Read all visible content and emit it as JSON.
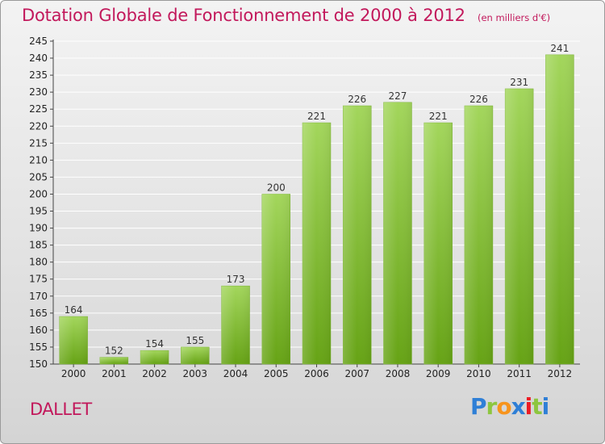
{
  "title": "Dotation Globale de Fonctionnement de 2000 à 2012",
  "subtitle": "(en milliers d'€)",
  "commune": "DALLET",
  "logo": {
    "letters": [
      "P",
      "r",
      "o",
      "x",
      "i",
      "t",
      "i"
    ],
    "colors": [
      "#2f7fd6",
      "#8dc63f",
      "#f7941d",
      "#2f7fd6",
      "#ec1c24",
      "#8dc63f",
      "#2f7fd6"
    ]
  },
  "colors": {
    "bar_light": "#a3d65c",
    "bar_dark": "#66a315",
    "title": "#c2185b"
  },
  "chart_data": {
    "type": "bar",
    "title": "Dotation Globale de Fonctionnement de 2000 à 2012",
    "categories": [
      "2000",
      "2001",
      "2002",
      "2003",
      "2004",
      "2005",
      "2006",
      "2007",
      "2008",
      "2009",
      "2010",
      "2011",
      "2012"
    ],
    "values": [
      164,
      152,
      154,
      155,
      173,
      200,
      221,
      226,
      227,
      221,
      226,
      231,
      241
    ],
    "ylim": [
      150,
      245
    ],
    "yticks": [
      150,
      155,
      160,
      165,
      170,
      175,
      180,
      185,
      190,
      195,
      200,
      205,
      210,
      215,
      220,
      225,
      230,
      235,
      240,
      245
    ],
    "grid": true
  }
}
